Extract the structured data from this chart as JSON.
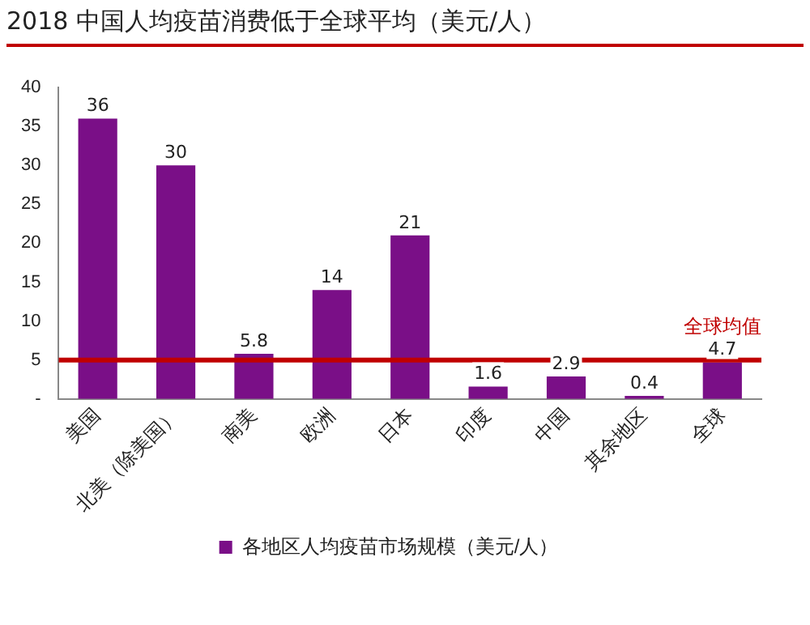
{
  "chart_data": {
    "type": "bar",
    "title": "2018 中国人均疫苗消费低于全球平均（美元/人）",
    "categories": [
      "美国",
      "北美（除美国）",
      "南美",
      "欧洲",
      "日本",
      "印度",
      "中国",
      "其余地区",
      "全球"
    ],
    "series": [
      {
        "name": "各地区人均疫苗市场规模（美元/人）",
        "color": "#7a0f87",
        "values": [
          36,
          30,
          5.8,
          14,
          21,
          1.6,
          2.9,
          0.4,
          4.7
        ]
      }
    ],
    "ylim": [
      0,
      40
    ],
    "yticks": [
      {
        "value": 0,
        "label": "-"
      },
      5,
      10,
      15,
      20,
      25,
      30,
      35,
      40
    ],
    "grid": false,
    "legend": "bottom",
    "data_labels": true,
    "ref_lines": [
      {
        "axis": "y",
        "value": 5,
        "label": "全球均值",
        "color": "#c00000"
      }
    ]
  }
}
